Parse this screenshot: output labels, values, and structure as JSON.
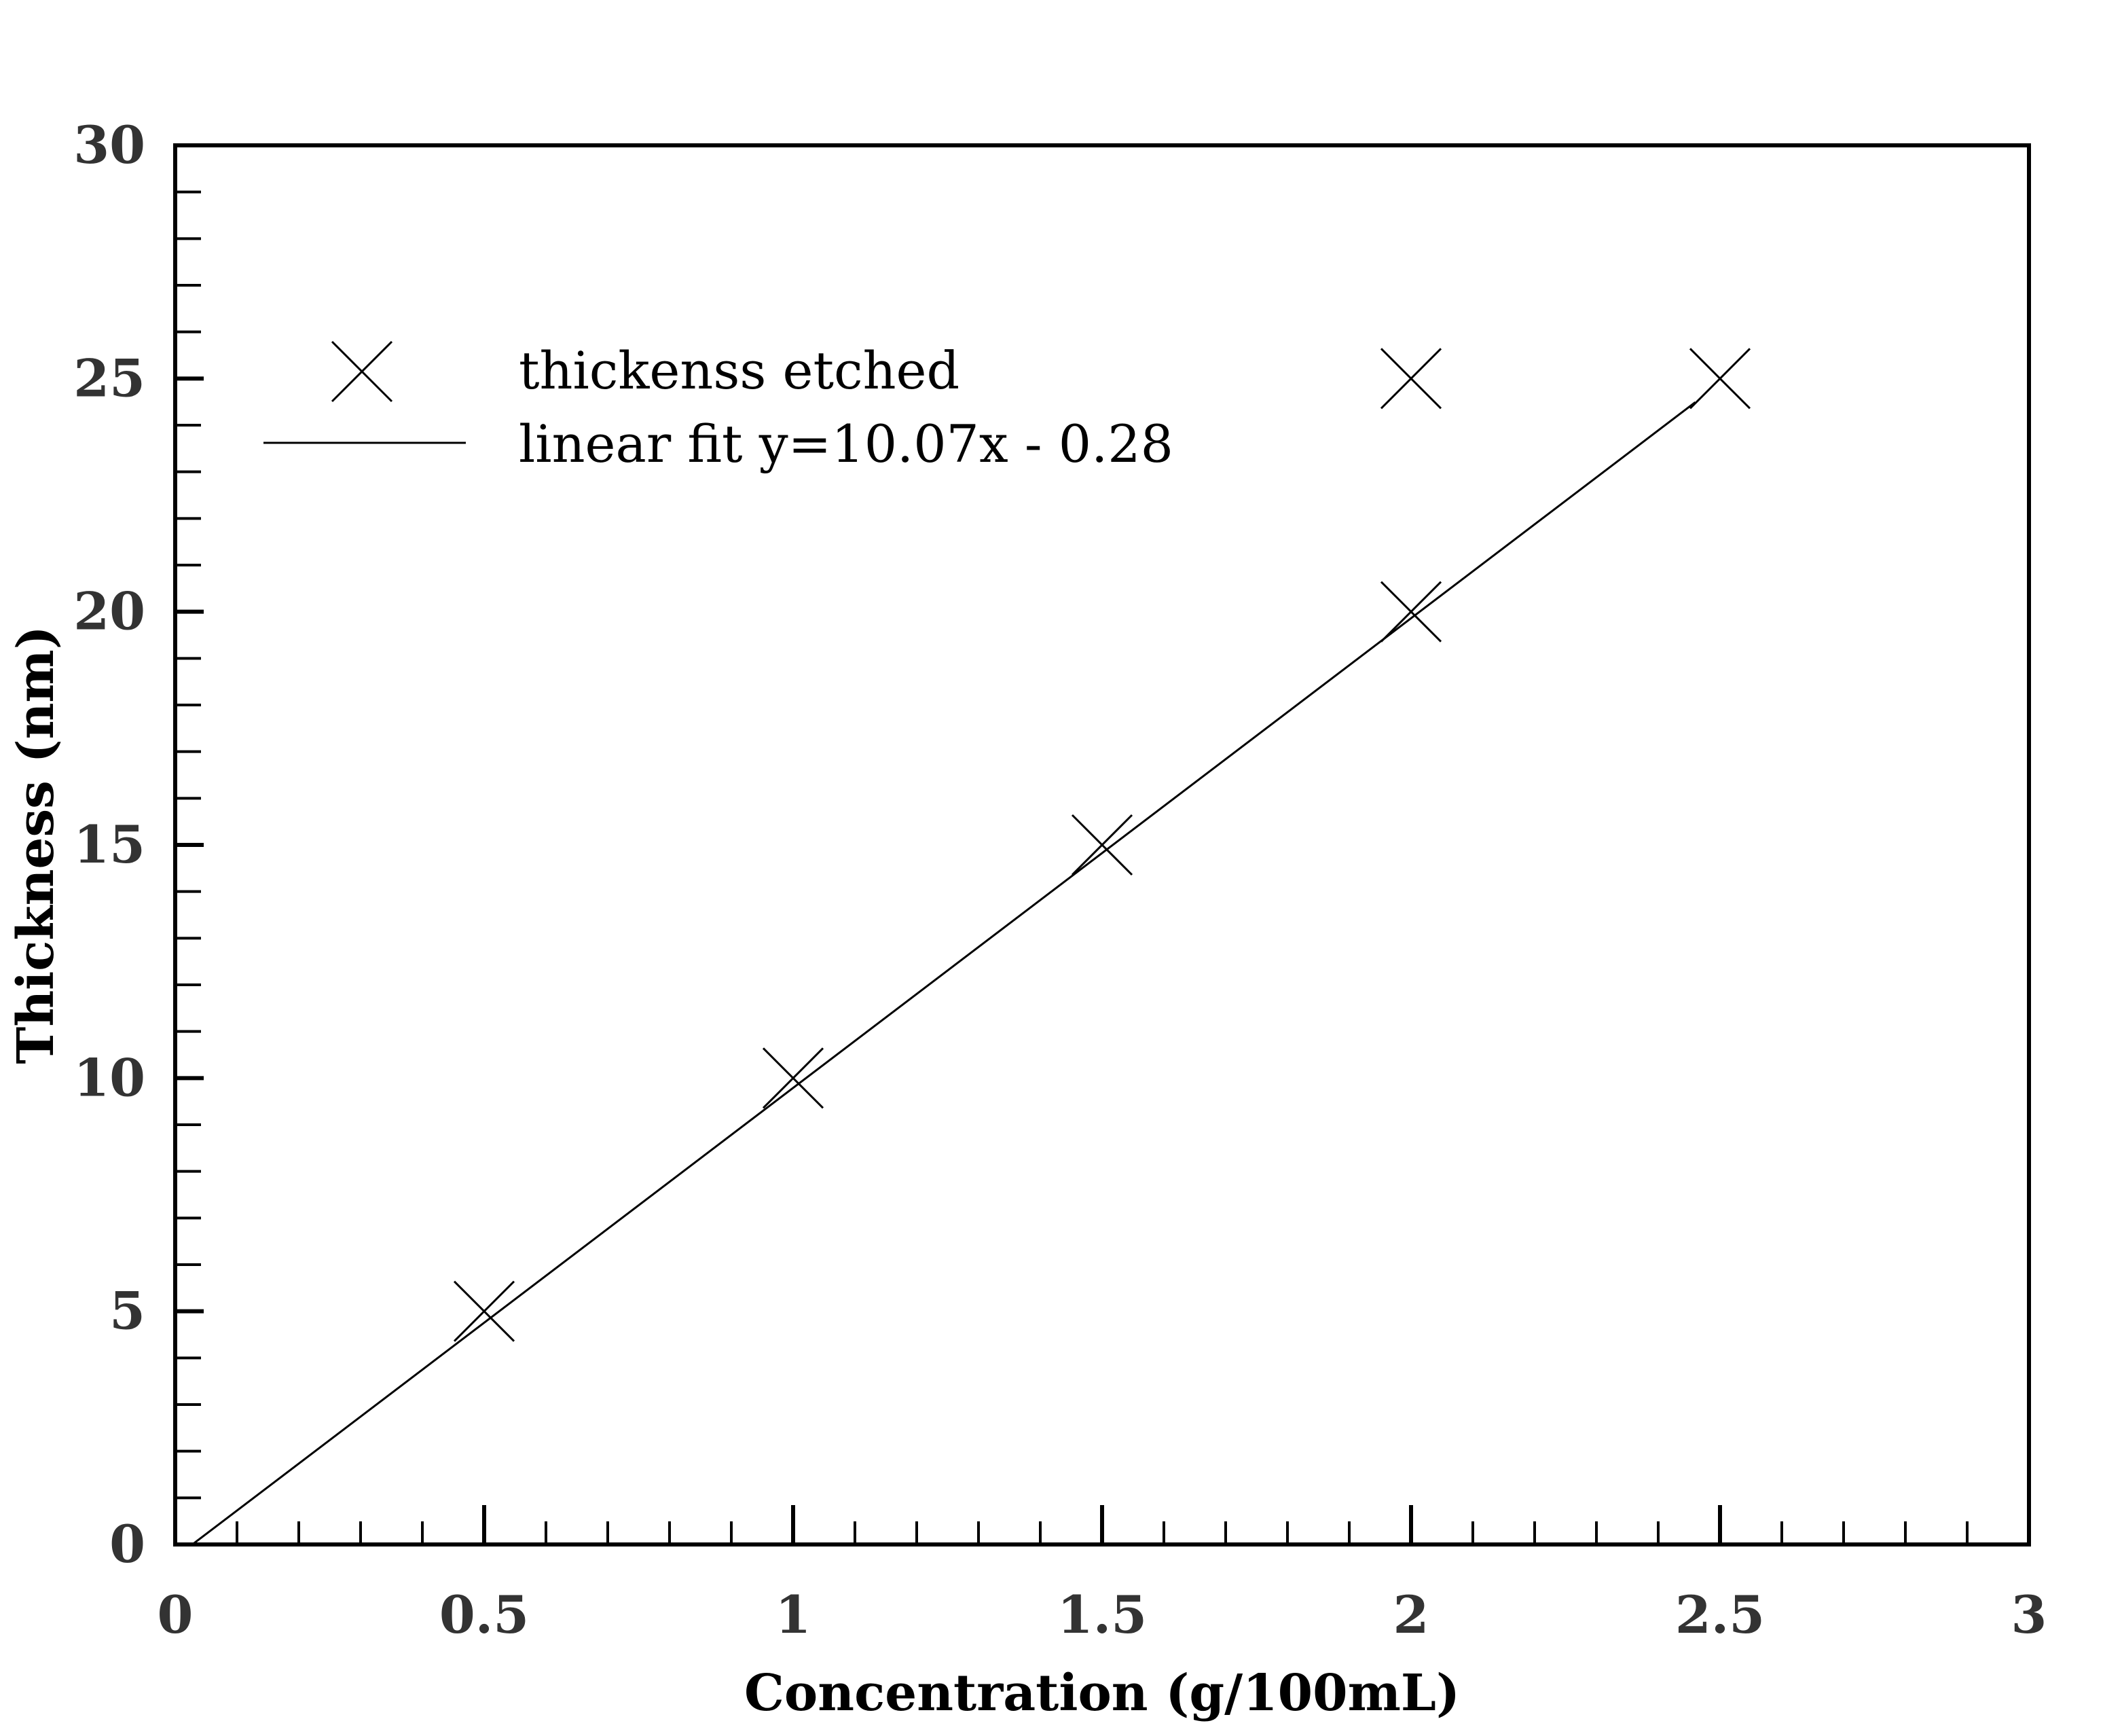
{
  "chart_data": {
    "type": "scatter",
    "xlabel": "Concentration (g/100mL)",
    "ylabel": "Thickness (nm)",
    "xlim": [
      0,
      3
    ],
    "ylim": [
      0,
      30
    ],
    "x_ticks": [
      "0",
      "0.5",
      "1",
      "1.5",
      "2",
      "2.5",
      "3"
    ],
    "y_ticks": [
      "0",
      "5",
      "10",
      "15",
      "20",
      "25",
      "30"
    ],
    "x_tick_values": [
      0,
      0.5,
      1,
      1.5,
      2,
      2.5,
      3
    ],
    "y_tick_values": [
      0,
      5,
      10,
      15,
      20,
      25,
      30
    ],
    "x_minor_step": 0.1,
    "y_minor_step": 1,
    "grid": false,
    "legend_position": "top-left",
    "series": [
      {
        "name": "thickenss etched",
        "kind": "scatter",
        "marker": "x",
        "color": "#000000",
        "points": [
          {
            "x": 0.5,
            "y": 5
          },
          {
            "x": 1.0,
            "y": 10
          },
          {
            "x": 1.5,
            "y": 15
          },
          {
            "x": 2.0,
            "y": 20
          },
          {
            "x": 2.0,
            "y": 25
          },
          {
            "x": 2.5,
            "y": 25
          }
        ]
      },
      {
        "name": "linear fit y=10.07x - 0.28",
        "kind": "line",
        "color": "#000000",
        "slope": 10.07,
        "intercept": -0.28,
        "x_range": [
          0.028,
          2.46
        ]
      }
    ]
  }
}
